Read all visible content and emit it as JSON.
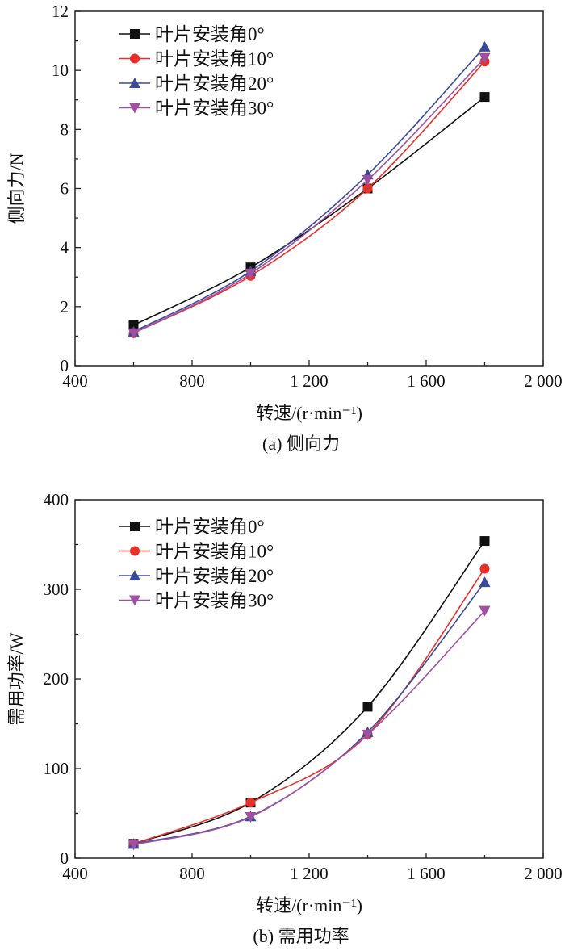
{
  "chart_data": [
    {
      "type": "line",
      "caption": "(a) 侧向力",
      "xlabel": "转速/(r·min⁻¹)",
      "ylabel": "侧向力/N",
      "x": [
        600,
        1000,
        1400,
        1800
      ],
      "xlim": [
        400,
        2000
      ],
      "ylim": [
        0,
        12
      ],
      "xticks": [
        400,
        800,
        1200,
        1600,
        2000
      ],
      "xtick_labels": [
        "400",
        "800",
        "1 200",
        "1 600",
        "2 000"
      ],
      "yticks": [
        0,
        2,
        4,
        6,
        8,
        10,
        12
      ],
      "ytick_labels": [
        "0",
        "2",
        "4",
        "6",
        "8",
        "10",
        "12"
      ],
      "grid": false,
      "legend_position": "top-left",
      "series": [
        {
          "name": "叶片安装角0°",
          "marker": "square",
          "color": "#111111",
          "values": [
            1.37,
            3.33,
            6.0,
            9.1
          ]
        },
        {
          "name": "叶片安装角10°",
          "marker": "circle",
          "color": "#e8302a",
          "values": [
            1.1,
            3.04,
            6.0,
            10.3
          ]
        },
        {
          "name": "叶片安装角20°",
          "marker": "triangle-up",
          "color": "#3a4a9a",
          "values": [
            1.15,
            3.2,
            6.47,
            10.8
          ]
        },
        {
          "name": "叶片安装角30°",
          "marker": "triangle-down",
          "color": "#a050a0",
          "values": [
            1.1,
            3.12,
            6.29,
            10.42
          ]
        }
      ]
    },
    {
      "type": "line",
      "caption": "(b) 需用功率",
      "xlabel": "转速/(r·min⁻¹)",
      "ylabel": "需用功率/W",
      "x": [
        600,
        1000,
        1400,
        1800
      ],
      "xlim": [
        400,
        2000
      ],
      "ylim": [
        0,
        400
      ],
      "xticks": [
        400,
        800,
        1200,
        1600,
        2000
      ],
      "xtick_labels": [
        "400",
        "800",
        "1 200",
        "1 600",
        "2 000"
      ],
      "yticks": [
        0,
        100,
        200,
        300,
        400
      ],
      "ytick_labels": [
        "0",
        "100",
        "200",
        "300",
        "400"
      ],
      "grid": false,
      "legend_position": "top-left",
      "series": [
        {
          "name": "叶片安装角0°",
          "marker": "square",
          "color": "#111111",
          "values": [
            16,
            62,
            169,
            354
          ]
        },
        {
          "name": "叶片安装角10°",
          "marker": "circle",
          "color": "#e8302a",
          "values": [
            16,
            62,
            138,
            323
          ]
        },
        {
          "name": "叶片安装角20°",
          "marker": "triangle-up",
          "color": "#3a4a9a",
          "values": [
            16,
            46.6,
            140.7,
            308
          ]
        },
        {
          "name": "叶片安装角30°",
          "marker": "triangle-down",
          "color": "#a050a0",
          "values": [
            15,
            46,
            138,
            276
          ]
        }
      ]
    }
  ]
}
